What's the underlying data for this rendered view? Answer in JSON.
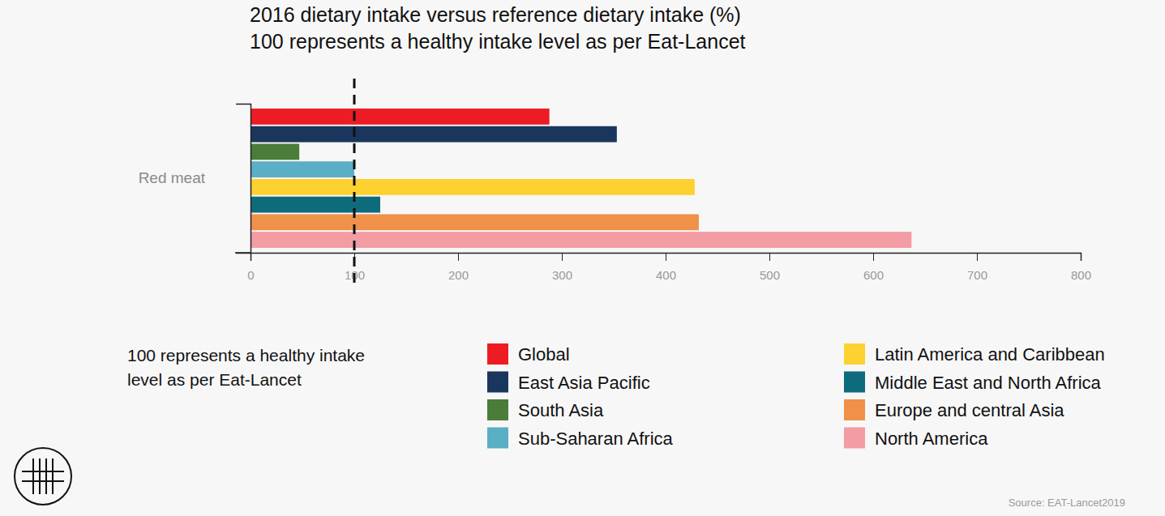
{
  "chart_data": {
    "type": "bar",
    "orientation": "horizontal",
    "title": "2016 dietary intake versus reference dietary intake (%)",
    "subtitle": "100 represents a healthy intake level as per Eat-Lancet",
    "note": "100 represents a healthy intake level as per Eat-Lancet",
    "source": "Source: EAT-Lancet2019",
    "reference_value": 100,
    "categories": [
      "Red meat"
    ],
    "series": [
      {
        "name": "Global",
        "color": "#ed1c24",
        "values": [
          288
        ]
      },
      {
        "name": "East Asia Pacific",
        "color": "#1b365d",
        "values": [
          353
        ]
      },
      {
        "name": "South Asia",
        "color": "#4a7c3a",
        "values": [
          47
        ]
      },
      {
        "name": "Sub-Saharan Africa",
        "color": "#5aafc4",
        "values": [
          100
        ]
      },
      {
        "name": "Latin America and Caribbean",
        "color": "#fdd12f",
        "values": [
          428
        ]
      },
      {
        "name": "Middle East and North Africa",
        "color": "#0e6b7c",
        "values": [
          125
        ]
      },
      {
        "name": "Europe and central Asia",
        "color": "#f0914a",
        "values": [
          432
        ]
      },
      {
        "name": "North America",
        "color": "#f39ca3",
        "values": [
          637
        ]
      }
    ],
    "xlim": [
      0,
      800
    ],
    "xticks": [
      0,
      100,
      200,
      300,
      400,
      500,
      600,
      700,
      800
    ],
    "grid": false,
    "legend": "bottom"
  }
}
